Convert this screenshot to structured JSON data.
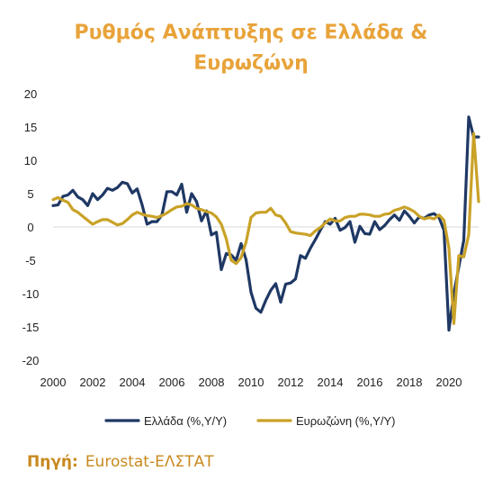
{
  "chart_data": {
    "type": "line",
    "title_line1": "Ρυθμός Ανάπτυξης σε Ελλάδα &",
    "title_line2": "Ευρωζώνη",
    "xlabel": "",
    "ylabel": "",
    "ylim": [
      -20,
      20
    ],
    "xlim": [
      2000,
      2021.5
    ],
    "yticks": [
      "20",
      "15",
      "10",
      "5",
      "0",
      "-5",
      "-10",
      "-15",
      "-20"
    ],
    "xticks": [
      "2000",
      "2002",
      "2004",
      "2006",
      "2008",
      "2010",
      "2012",
      "2014",
      "2016",
      "2018",
      "2020"
    ],
    "grid": false,
    "legend_position": "bottom",
    "x": [
      2000.0,
      2000.25,
      2000.5,
      2000.75,
      2001.0,
      2001.25,
      2001.5,
      2001.75,
      2002.0,
      2002.25,
      2002.5,
      2002.75,
      2003.0,
      2003.25,
      2003.5,
      2003.75,
      2004.0,
      2004.25,
      2004.5,
      2004.75,
      2005.0,
      2005.25,
      2005.5,
      2005.75,
      2006.0,
      2006.25,
      2006.5,
      2006.75,
      2007.0,
      2007.25,
      2007.5,
      2007.75,
      2008.0,
      2008.25,
      2008.5,
      2008.75,
      2009.0,
      2009.25,
      2009.5,
      2009.75,
      2010.0,
      2010.25,
      2010.5,
      2010.75,
      2011.0,
      2011.25,
      2011.5,
      2011.75,
      2012.0,
      2012.25,
      2012.5,
      2012.75,
      2013.0,
      2013.25,
      2013.5,
      2013.75,
      2014.0,
      2014.25,
      2014.5,
      2014.75,
      2015.0,
      2015.25,
      2015.5,
      2015.75,
      2016.0,
      2016.25,
      2016.5,
      2016.75,
      2017.0,
      2017.25,
      2017.5,
      2017.75,
      2018.0,
      2018.25,
      2018.5,
      2018.75,
      2019.0,
      2019.25,
      2019.5,
      2019.75,
      2020.0,
      2020.25,
      2020.5,
      2020.75,
      2021.0,
      2021.25,
      2021.5
    ],
    "series": [
      {
        "name": "Ελλάδα (%,Υ/Υ)",
        "color": "#1F3864",
        "values": [
          3.2,
          3.3,
          4.6,
          4.8,
          5.5,
          4.5,
          4.1,
          3.2,
          5.0,
          4.1,
          4.8,
          5.8,
          5.5,
          5.9,
          6.7,
          6.5,
          5.1,
          5.7,
          3.3,
          0.4,
          0.8,
          0.8,
          1.8,
          5.3,
          5.3,
          4.8,
          6.4,
          2.2,
          5.0,
          3.8,
          0.9,
          2.4,
          -1.2,
          -0.8,
          -6.4,
          -4.0,
          -4.2,
          -5.0,
          -2.5,
          -4.9,
          -9.8,
          -12.2,
          -12.8,
          -11.0,
          -9.5,
          -8.5,
          -11.3,
          -8.6,
          -8.4,
          -7.8,
          -4.3,
          -4.7,
          -3.2,
          -1.9,
          -0.5,
          0.8,
          0.4,
          1.3,
          -0.5,
          -0.1,
          0.8,
          -2.3,
          0.1,
          -1.0,
          -1.1,
          0.8,
          -0.4,
          0.2,
          1.1,
          1.8,
          1.0,
          2.4,
          1.6,
          0.6,
          1.5,
          1.3,
          1.8,
          2.0,
          1.4,
          -0.5,
          -15.5,
          -10.0,
          -6.0,
          -2.0,
          16.5,
          13.5,
          13.5
        ]
      },
      {
        "name": "Ευρωζώνη (%,Υ/Υ)",
        "color": "#C9A227",
        "values": [
          4.1,
          4.4,
          4.0,
          3.7,
          2.6,
          2.2,
          1.6,
          1.0,
          0.4,
          0.8,
          1.1,
          1.1,
          0.7,
          0.3,
          0.5,
          1.1,
          1.8,
          2.2,
          1.9,
          1.7,
          1.6,
          1.4,
          1.7,
          2.1,
          2.6,
          3.0,
          3.1,
          3.5,
          3.3,
          2.8,
          2.6,
          2.3,
          2.1,
          1.5,
          0.4,
          -1.8,
          -5.0,
          -5.5,
          -4.6,
          -2.3,
          1.4,
          2.1,
          2.2,
          2.2,
          2.8,
          1.8,
          1.6,
          0.6,
          -0.7,
          -0.9,
          -1.0,
          -1.1,
          -1.3,
          -0.6,
          -0.1,
          0.6,
          1.2,
          0.9,
          0.9,
          1.4,
          1.6,
          1.6,
          1.9,
          1.9,
          1.8,
          1.6,
          1.6,
          1.9,
          2.0,
          2.5,
          2.7,
          3.0,
          2.7,
          2.3,
          1.6,
          1.2,
          1.4,
          1.2,
          1.8,
          1.0,
          -3.2,
          -14.5,
          -4.3,
          -4.5,
          -1.2,
          14.0,
          3.8
        ]
      }
    ]
  },
  "source": {
    "label": "Πηγή:",
    "value": "Eurostat-ΕΛΣΤΑΤ"
  }
}
